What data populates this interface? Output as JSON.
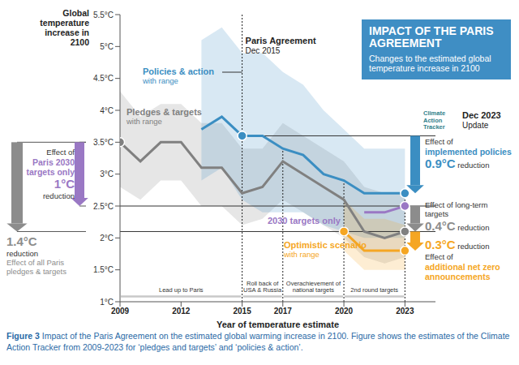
{
  "chart_data": {
    "type": "line",
    "title": "IMPACT OF THE PARIS AGREEMENT",
    "subtitle": "Changes to the estimated global temperature increase in 2100",
    "y_label": "Global temperature increase in 2100",
    "x_label": "Year of temperature estimate",
    "x": [
      2009,
      2010,
      2011,
      2012,
      2013,
      2014,
      2015,
      2016,
      2017,
      2018,
      2019,
      2020,
      2021,
      2022,
      2023
    ],
    "xlim": [
      2009,
      2024.5
    ],
    "xticks": [
      2009,
      2012,
      2015,
      2017,
      2020,
      2023
    ],
    "ylim": [
      1,
      5.5
    ],
    "yticks": [
      {
        "value": 1,
        "label": "1°C"
      },
      {
        "value": 1.5,
        "label": "1.5°C"
      },
      {
        "value": 2,
        "label": "2°C"
      },
      {
        "value": 2.5,
        "label": "2.5°C"
      },
      {
        "value": 3,
        "label": "3°C"
      },
      {
        "value": 3.5,
        "label": "3.5°C"
      },
      {
        "value": 4,
        "label": "4°C"
      },
      {
        "value": 4.5,
        "label": "4.5°C"
      },
      {
        "value": 5,
        "label": "5°C"
      },
      {
        "value": 5.5,
        "label": "5.5°C"
      }
    ],
    "series": [
      {
        "name": "Pledges & targets",
        "range_label": "with range",
        "color": "#808080",
        "marker": "circle",
        "marked_x": [
          2009,
          2023
        ],
        "values": [
          3.5,
          3.2,
          3.5,
          3.5,
          3.1,
          3.1,
          2.7,
          2.8,
          3.2,
          3.0,
          2.8,
          2.6,
          2.1,
          2.0,
          2.1
        ],
        "range_low": [
          2.8,
          2.6,
          2.9,
          2.9,
          2.5,
          2.5,
          2.2,
          2.3,
          2.6,
          2.4,
          2.2,
          2.0,
          1.7,
          1.6,
          1.7
        ],
        "range_high": [
          4.3,
          3.9,
          4.1,
          4.1,
          3.8,
          3.8,
          3.4,
          3.4,
          3.8,
          3.6,
          3.4,
          3.2,
          2.8,
          2.7,
          2.7
        ]
      },
      {
        "name": "Policies & action",
        "range_label": "with range",
        "color": "#3b8ec2",
        "marker": "circle",
        "marked_x": [
          2015,
          2023
        ],
        "values": [
          null,
          null,
          null,
          null,
          3.7,
          3.9,
          3.6,
          3.6,
          3.4,
          3.3,
          3.0,
          2.9,
          2.7,
          2.7,
          2.7
        ],
        "range_low": [
          null,
          null,
          null,
          null,
          2.9,
          3.1,
          2.6,
          2.4,
          2.4,
          2.4,
          2.2,
          2.1,
          2.0,
          2.0,
          2.0
        ],
        "range_high": [
          null,
          null,
          null,
          null,
          5.1,
          5.3,
          4.9,
          4.9,
          4.6,
          4.4,
          4.0,
          3.7,
          3.4,
          3.4,
          3.4
        ]
      },
      {
        "name": "2030 targets only",
        "color": "#9a78c4",
        "marker": "circle",
        "marked_x": [
          2023
        ],
        "values": [
          null,
          null,
          null,
          null,
          null,
          null,
          null,
          null,
          null,
          null,
          null,
          null,
          2.4,
          2.4,
          2.5
        ]
      },
      {
        "name": "Optimistic scenario",
        "range_label": "with range",
        "color": "#f5a623",
        "marker": "circle",
        "marked_x": [
          2020,
          2023
        ],
        "values": [
          null,
          null,
          null,
          null,
          null,
          null,
          null,
          null,
          null,
          null,
          null,
          2.1,
          1.8,
          1.8,
          1.8
        ],
        "range_low": [
          null,
          null,
          null,
          null,
          null,
          null,
          null,
          null,
          null,
          null,
          null,
          1.8,
          1.5,
          1.5,
          1.5
        ],
        "range_high": [
          null,
          null,
          null,
          null,
          null,
          null,
          null,
          null,
          null,
          null,
          null,
          2.6,
          2.3,
          2.3,
          2.2
        ]
      }
    ],
    "reference_lines": [
      {
        "y": 3.6,
        "from": 2015
      },
      {
        "y": 2.5,
        "from": 2009
      },
      {
        "y": 2.1,
        "from": 2009
      }
    ],
    "event": {
      "x": 2015,
      "title": "Paris Agreement",
      "date": "Dec 2015"
    },
    "vertical_lines": [
      2017,
      2020,
      2023
    ],
    "periods": [
      {
        "start": 2009,
        "end": 2015,
        "label": "Lead up to Paris"
      },
      {
        "start": 2015,
        "end": 2017,
        "label": "Roll back of USA & Russia"
      },
      {
        "start": 2017,
        "end": 2020,
        "label": "Overachievement of national targets"
      },
      {
        "start": 2020,
        "end": 2023,
        "label": "2nd round targets"
      }
    ],
    "annotations": [
      {
        "from": 3.5,
        "to": 2.1,
        "color": "#8c8c8c",
        "value_label": "1.4°C",
        "unit": "reduction",
        "lead": "Effect of all Paris pledges & targets"
      },
      {
        "from": 3.5,
        "to": 2.5,
        "color": "#9a78c4",
        "lead": "Effect of",
        "emphasis": "Paris 2030 targets only",
        "value_label": "1°C",
        "unit": "reduction"
      },
      {
        "from": 3.6,
        "to": 2.7,
        "color": "#3b8ec2",
        "lead": "Effect of",
        "emphasis": "implemented policies",
        "value_label": "0.9°C",
        "unit": "reduction"
      },
      {
        "from": 2.5,
        "to": 2.1,
        "color": "#8c8c8c",
        "lead": "Effect of long-term targets",
        "value_label": "0.4°C",
        "unit": "reduction"
      },
      {
        "from": 2.1,
        "to": 1.8,
        "color": "#f5a623",
        "lead": "Effect of",
        "emphasis": "additional net zero announcements",
        "value_label": "0.3°C",
        "unit": "reduction"
      }
    ],
    "box_color": "#3f8ec4",
    "source_logo": "Climate Action Tracker",
    "update": {
      "date": "Dec 2023",
      "label": "Update"
    },
    "caption": {
      "figure": "Figure 3",
      "text": "Impact of the Paris Agreement on the estimated global warming increase in 2100. Figure shows the estimates of the Climate Action Tracker from 2009-2023 for ‘pledges and targets’ and ‘policies & action’."
    },
    "grid": false
  }
}
